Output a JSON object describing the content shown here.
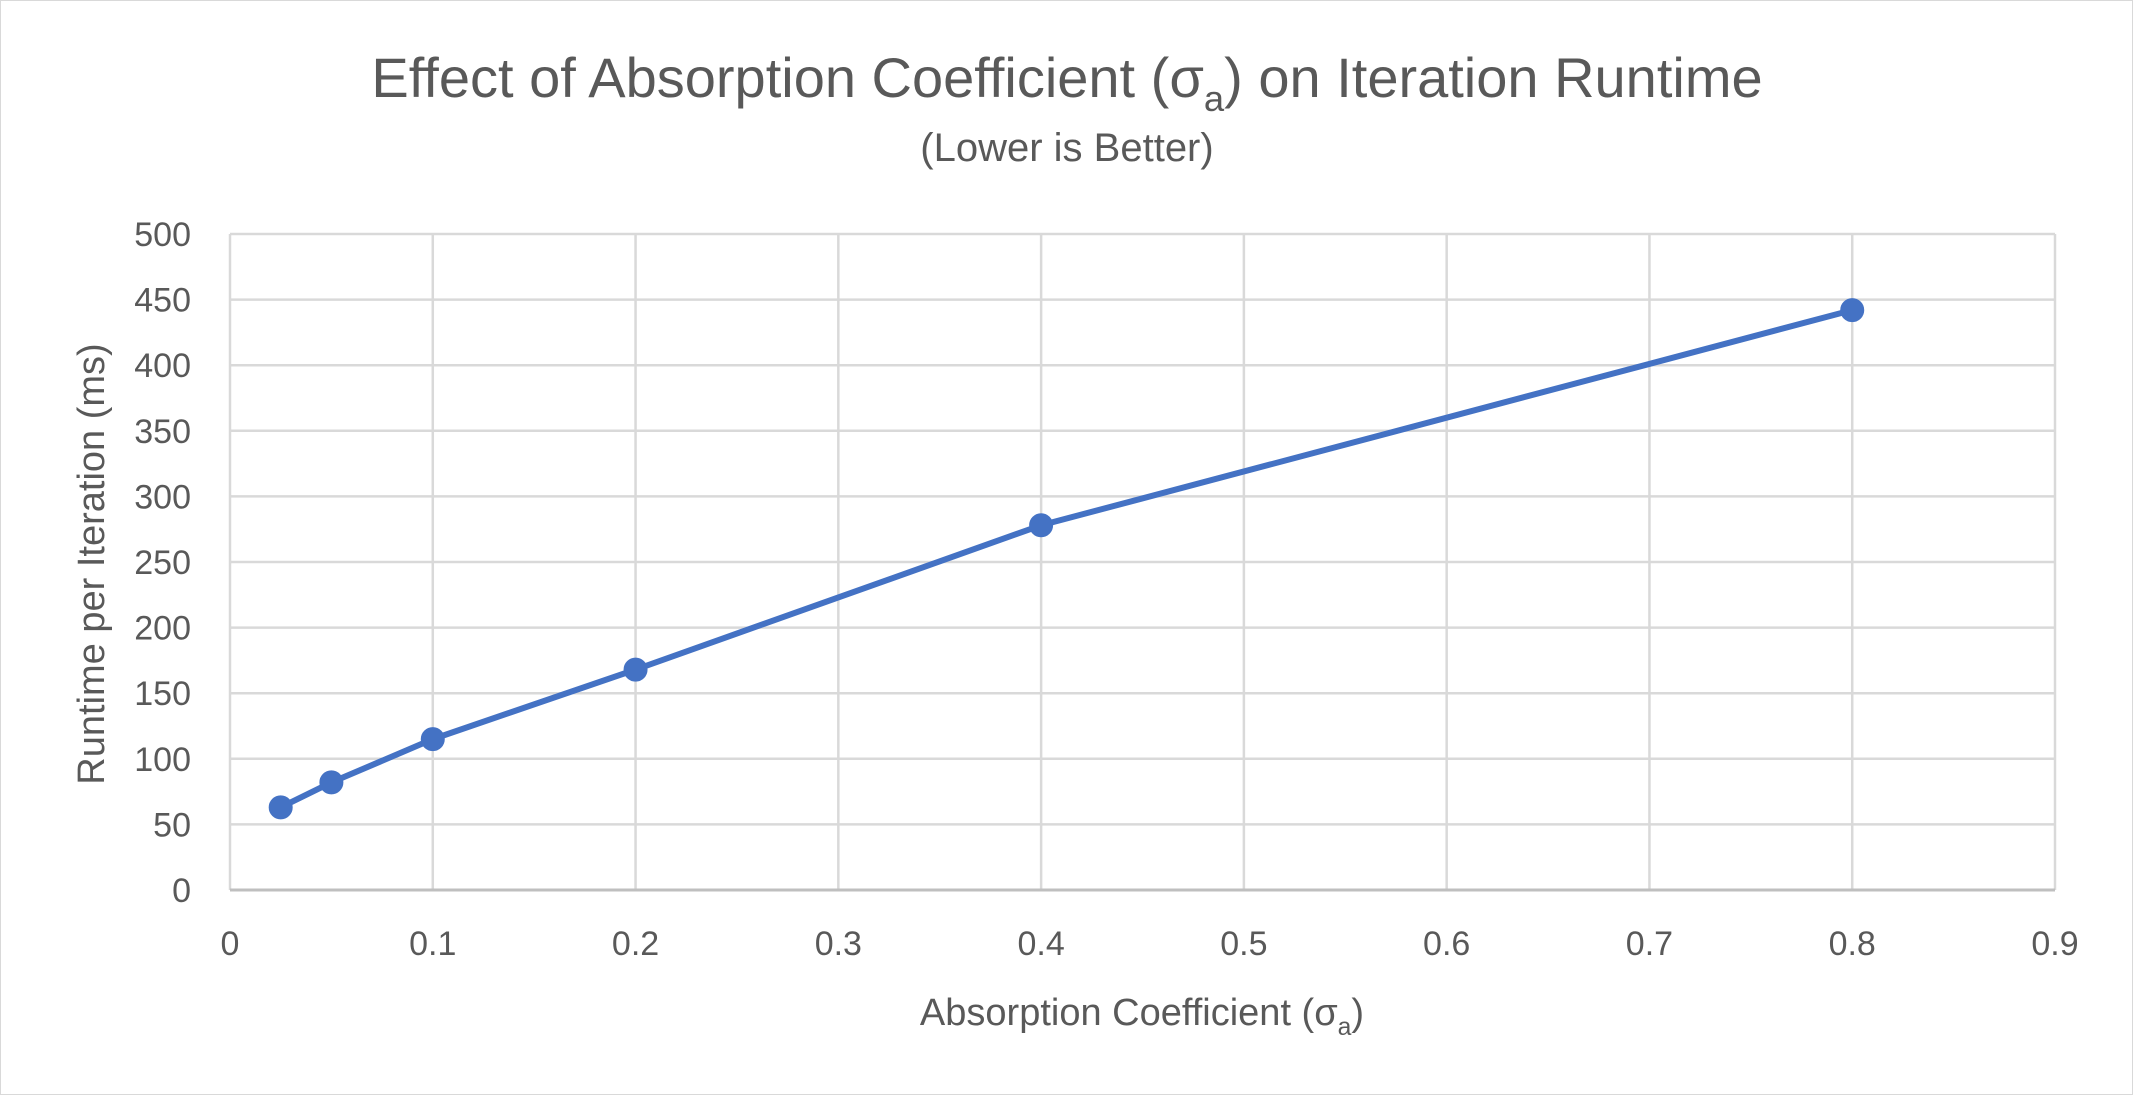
{
  "chart_data": {
    "type": "line",
    "title": {
      "main": "Effect of Absorption Coefficient (σ",
      "sub": "a",
      "tail": ") on Iteration Runtime"
    },
    "subtitle": "(Lower is Better)",
    "xlabel": {
      "main": "Absorption Coefficient (σ",
      "sub": "a",
      "tail": ")"
    },
    "ylabel": "Runtime per Iteration (ms)",
    "xlim": [
      0,
      0.9
    ],
    "ylim": [
      0,
      500
    ],
    "x_ticks": [
      0,
      0.1,
      0.2,
      0.3,
      0.4,
      0.5,
      0.6,
      0.7,
      0.8,
      0.9
    ],
    "x_tick_labels": [
      "0",
      "0.1",
      "0.2",
      "0.3",
      "0.4",
      "0.5",
      "0.6",
      "0.7",
      "0.8",
      "0.9"
    ],
    "y_ticks": [
      0,
      50,
      100,
      150,
      200,
      250,
      300,
      350,
      400,
      450,
      500
    ],
    "y_tick_labels": [
      "0",
      "50",
      "100",
      "150",
      "200",
      "250",
      "300",
      "350",
      "400",
      "450",
      "500"
    ],
    "grid": true,
    "legend": "none",
    "series": [
      {
        "color": "#4472c4",
        "x": [
          0.025,
          0.05,
          0.1,
          0.2,
          0.4,
          0.8
        ],
        "y": [
          63,
          82,
          115,
          168,
          278,
          442
        ]
      }
    ]
  }
}
